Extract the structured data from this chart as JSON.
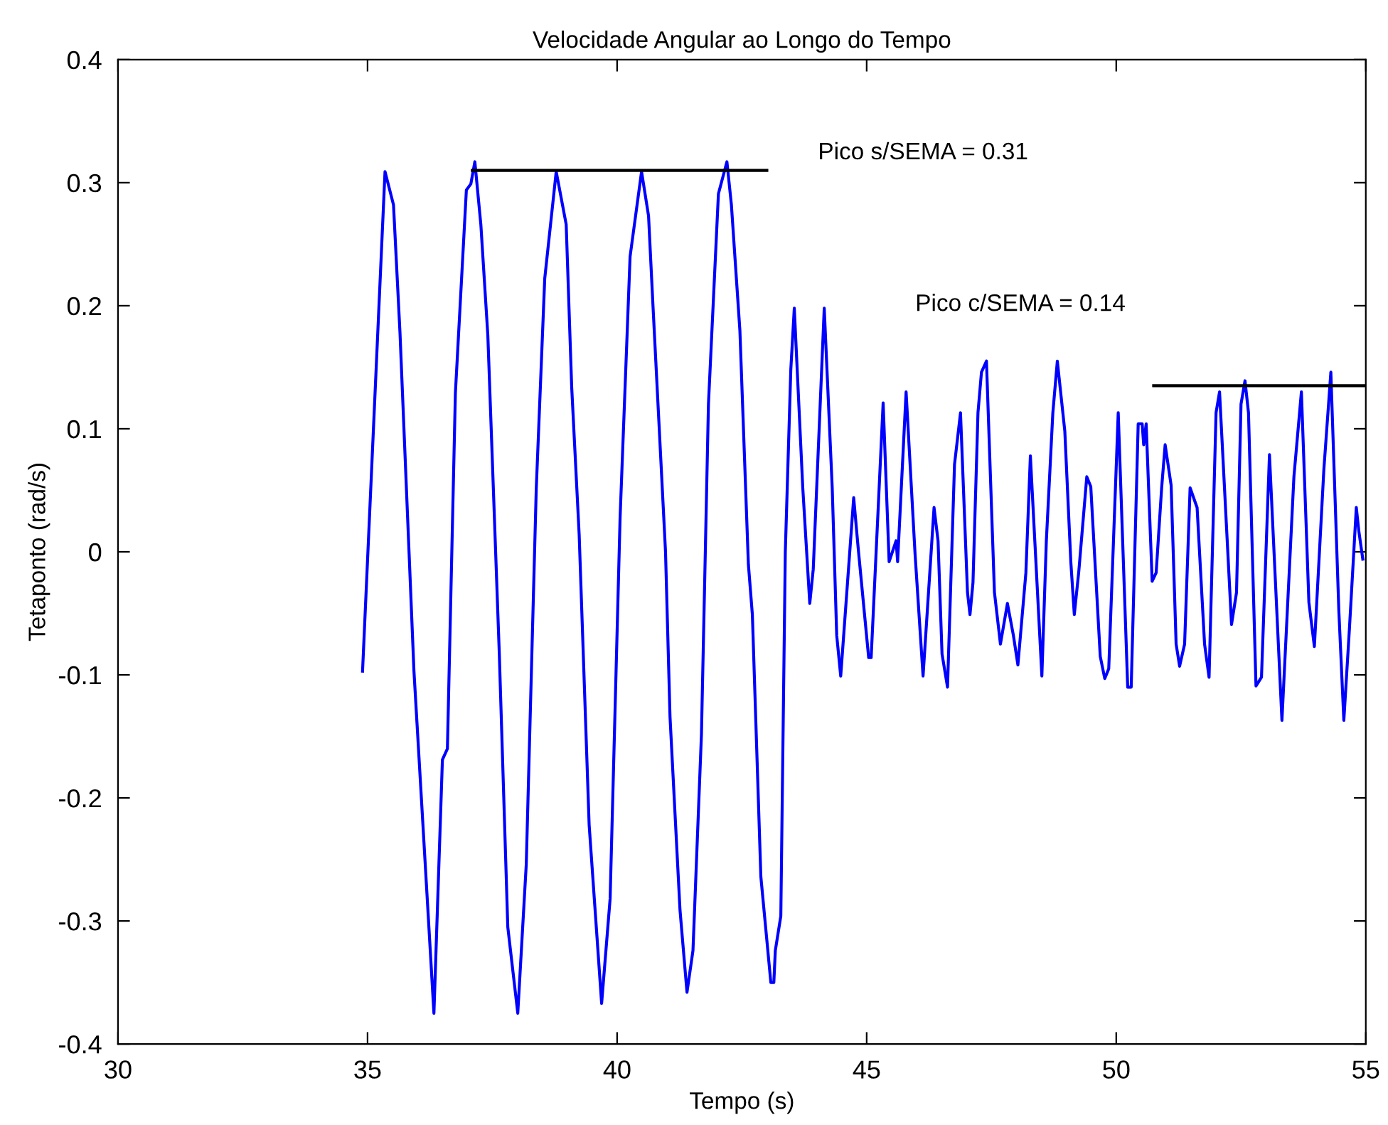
{
  "chart_data": {
    "type": "line",
    "title": "Velocidade Angular ao Longo do Tempo",
    "xlabel": "Tempo (s)",
    "ylabel": "Tetaponto (rad/s)",
    "xlim": [
      30,
      55
    ],
    "xticks": [
      30,
      35,
      40,
      45,
      50,
      55
    ],
    "ylim": [
      -0.4,
      0.4
    ],
    "yticks": [
      -0.4,
      -0.3,
      -0.2,
      -0.1,
      0,
      0.1,
      0.2,
      0.3,
      0.4
    ],
    "grid": false,
    "annotations": [
      "Pico s/SEMA = 0.31",
      "Pico c/SEMA = 0.14"
    ],
    "series": [
      {
        "color": "#0000ff",
        "x": [
          34.9,
          35.35,
          35.52,
          35.65,
          35.93,
          36.33,
          36.5,
          36.6,
          36.76,
          36.98,
          37.07,
          37.15,
          37.27,
          37.41,
          37.64,
          37.81,
          38.01,
          38.18,
          38.38,
          38.55,
          38.78,
          38.98,
          39.09,
          39.24,
          39.44,
          39.69,
          39.86,
          40.06,
          40.26,
          40.49,
          40.63,
          40.72,
          40.97,
          41.06,
          41.26,
          41.4,
          41.52,
          41.69,
          41.83,
          42.03,
          42.2,
          42.29,
          42.46,
          42.63,
          42.71,
          42.88,
          43.08,
          43.14,
          43.17,
          43.28,
          43.37,
          43.48,
          43.55,
          43.72,
          43.86,
          43.93,
          44.15,
          44.31,
          44.4,
          44.48,
          44.74,
          44.83,
          45.04,
          45.09,
          45.33,
          45.45,
          45.59,
          45.62,
          45.79,
          45.97,
          46.13,
          46.35,
          46.43,
          46.51,
          46.62,
          46.76,
          46.88,
          47.02,
          47.07,
          47.13,
          47.23,
          47.3,
          47.4,
          47.56,
          47.68,
          47.82,
          47.94,
          48.03,
          48.19,
          48.28,
          48.51,
          48.6,
          48.73,
          48.82,
          48.97,
          49.09,
          49.16,
          49.25,
          49.41,
          49.49,
          49.68,
          49.77,
          49.85,
          50.04,
          50.23,
          50.3,
          50.44,
          50.52,
          50.55,
          50.6,
          50.72,
          50.8,
          50.91,
          50.98,
          51.1,
          51.2,
          51.27,
          51.37,
          51.48,
          51.62,
          51.77,
          51.86,
          52.0,
          52.07,
          52.31,
          52.41,
          52.5,
          52.58,
          52.65,
          52.8,
          52.91,
          53.07,
          53.32,
          53.56,
          53.71,
          53.86,
          53.97,
          54.16,
          54.3,
          54.46,
          54.56,
          54.67,
          54.81,
          54.86,
          54.94
        ],
        "values": [
          -0.097,
          0.309,
          0.282,
          0.178,
          -0.097,
          -0.375,
          -0.169,
          -0.16,
          0.129,
          0.294,
          0.299,
          0.317,
          0.266,
          0.176,
          -0.083,
          -0.305,
          -0.375,
          -0.254,
          0.051,
          0.222,
          0.309,
          0.266,
          0.134,
          0.014,
          -0.222,
          -0.367,
          -0.282,
          0.028,
          0.24,
          0.309,
          0.273,
          0.199,
          0.0,
          -0.134,
          -0.291,
          -0.358,
          -0.324,
          -0.148,
          0.12,
          0.291,
          0.317,
          0.282,
          0.18,
          -0.01,
          -0.051,
          -0.264,
          -0.35,
          -0.35,
          -0.324,
          -0.296,
          0.0,
          0.148,
          0.198,
          0.052,
          -0.042,
          -0.014,
          0.198,
          0.052,
          -0.068,
          -0.101,
          0.044,
          0.003,
          -0.086,
          -0.086,
          0.121,
          -0.008,
          0.009,
          -0.008,
          0.13,
          -0.002,
          -0.101,
          0.036,
          0.009,
          -0.083,
          -0.11,
          0.071,
          0.113,
          -0.033,
          -0.051,
          -0.025,
          0.113,
          0.146,
          0.155,
          -0.033,
          -0.075,
          -0.042,
          -0.068,
          -0.092,
          -0.017,
          0.078,
          -0.101,
          0.009,
          0.113,
          0.155,
          0.098,
          -0.008,
          -0.051,
          -0.016,
          0.061,
          0.053,
          -0.085,
          -0.103,
          -0.095,
          0.113,
          -0.11,
          -0.11,
          0.104,
          0.104,
          0.087,
          0.104,
          -0.024,
          -0.017,
          0.052,
          0.087,
          0.054,
          -0.075,
          -0.093,
          -0.075,
          0.052,
          0.036,
          -0.075,
          -0.102,
          0.113,
          0.13,
          -0.059,
          -0.033,
          0.12,
          0.139,
          0.113,
          -0.109,
          -0.102,
          0.079,
          -0.137,
          0.061,
          0.13,
          -0.041,
          -0.077,
          0.067,
          0.146,
          -0.048,
          -0.137,
          -0.064,
          0.036,
          0.017,
          -0.006
        ]
      },
      {
        "color": "#000000",
        "x": [
          37.1,
          43.0
        ],
        "values": [
          0.31,
          0.31
        ]
      },
      {
        "color": "#000000",
        "x": [
          50.75,
          55.0
        ],
        "values": [
          0.135,
          0.135
        ]
      }
    ]
  }
}
